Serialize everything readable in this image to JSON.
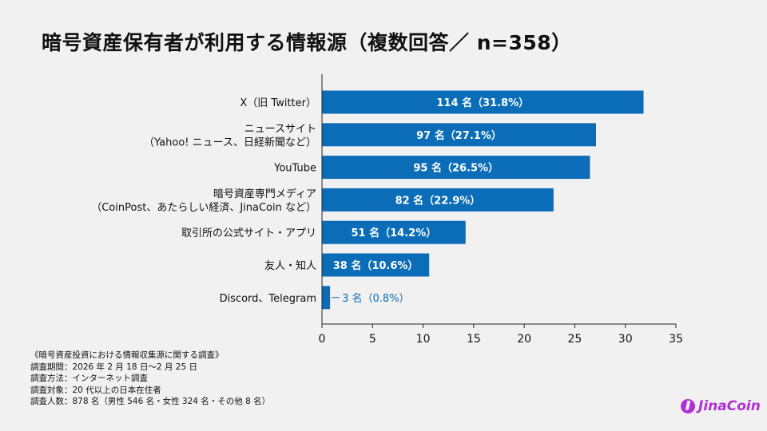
{
  "chart_data": {
    "type": "bar",
    "orientation": "horizontal",
    "title": "暗号資産保有者が利用する情報源（複数回答／ n=358）",
    "categories": [
      [
        "X（旧 Twitter）"
      ],
      [
        "ニュースサイト",
        "（Yahoo! ニュース、日経新聞など）"
      ],
      [
        "YouTube"
      ],
      [
        "暗号資産専門メディア",
        "（CoinPost、あたらしい経済、JinaCoin など）"
      ],
      [
        "取引所の公式サイト・アプリ"
      ],
      [
        "友人・知人"
      ],
      [
        "Discord、Telegram"
      ]
    ],
    "values": [
      31.8,
      27.1,
      26.5,
      22.9,
      14.2,
      10.6,
      0.8
    ],
    "data_labels": [
      "114 名（31.8%）",
      "97 名（27.1%）",
      "95 名（26.5%）",
      "82 名（22.9%）",
      "51 名（14.2%）",
      "38 名（10.6%）",
      "3 名（0.8%）"
    ],
    "xlim": [
      0,
      35
    ],
    "xticks": [
      0,
      5,
      10,
      15,
      20,
      25,
      30,
      35
    ],
    "grid": false,
    "bar_color": "#0b6db8"
  },
  "notes": [
    "《暗号資産投資における情報収集源に関する調査》",
    "調査期間：2026 年 2 月 18 日〜2 月 25 日",
    "調査方法：インターネット調査",
    "調査対象：20 代以上の日本在住者",
    "調査人数：878 名（男性 546 名・女性 324 名・その他 8 名）"
  ],
  "logo": {
    "text": "JinaCoin",
    "color": "#b02fd6"
  }
}
